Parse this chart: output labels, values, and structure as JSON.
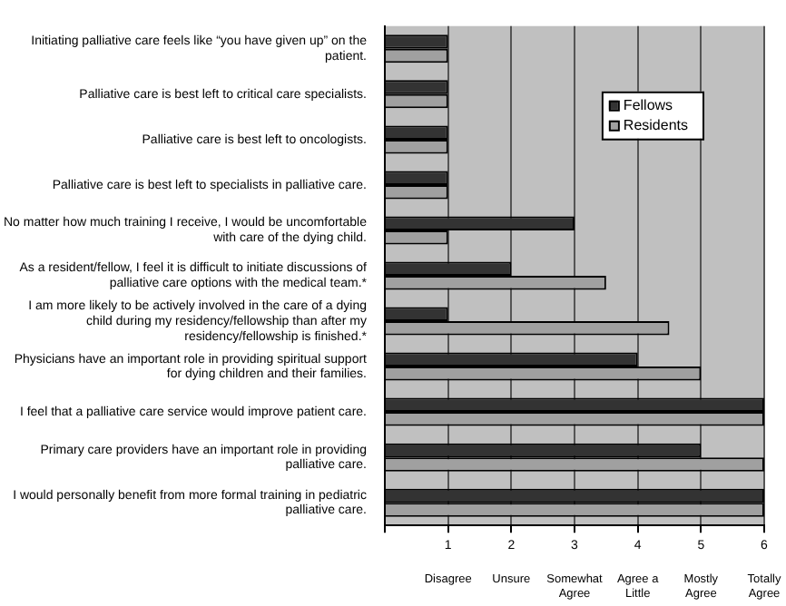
{
  "chart_data": {
    "type": "bar",
    "orientation": "horizontal",
    "categories": [
      "Initiating palliative care feels like “you have given up” on the patient.",
      "Palliative care is best left to critical care specialists.",
      "Palliative care is best left to oncologists.",
      "Palliative care is best left to specialists in palliative care.",
      "No matter how much training I receive, I would be uncomfortable with care of the dying child.",
      "As a resident/fellow, I feel it is difficult to initiate discussions of palliative care options with the medical team.*",
      "I am more likely to be actively involved in the care of a dying child during my residency/fellowship than after my residency/fellowship is finished.*",
      "Physicians have an important role in providing spiritual support for dying children and their families.",
      "I feel that a palliative care service would improve patient care.",
      "Primary care providers have an important role in providing palliative care.",
      "I would personally benefit from more formal training in pediatric palliative care."
    ],
    "series": [
      {
        "name": "Fellows",
        "color": "#333333",
        "values": [
          1,
          1,
          1,
          1,
          3,
          2,
          1,
          4,
          6,
          5,
          6
        ]
      },
      {
        "name": "Residents",
        "color": "#a0a0a0",
        "values": [
          1,
          1,
          1,
          1,
          1,
          3.5,
          4.5,
          5,
          6,
          6,
          6
        ]
      }
    ],
    "xlim": [
      0,
      6
    ],
    "xticks": [
      {
        "value": 0,
        "label": null
      },
      1,
      2,
      3,
      4,
      5,
      6
    ],
    "annotations": [
      "Disagree",
      "Unsure",
      "Somewhat Agree",
      "Agree a Little",
      "Mostly Agree",
      "Totally Agree"
    ],
    "grid": "x",
    "legend": "top right"
  }
}
